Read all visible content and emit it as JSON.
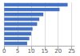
{
  "chart_data": {
    "type": "bar",
    "orientation": "horizontal",
    "values": [
      23.5,
      20.5,
      14.5,
      13.0,
      12.2,
      10.5,
      10.0,
      9.3,
      8.5
    ],
    "color": "#4472c4",
    "xlim": [
      0,
      26
    ],
    "xticks": [
      0,
      5,
      10,
      15,
      20,
      25
    ],
    "grid": true,
    "tick_labels": "x"
  }
}
